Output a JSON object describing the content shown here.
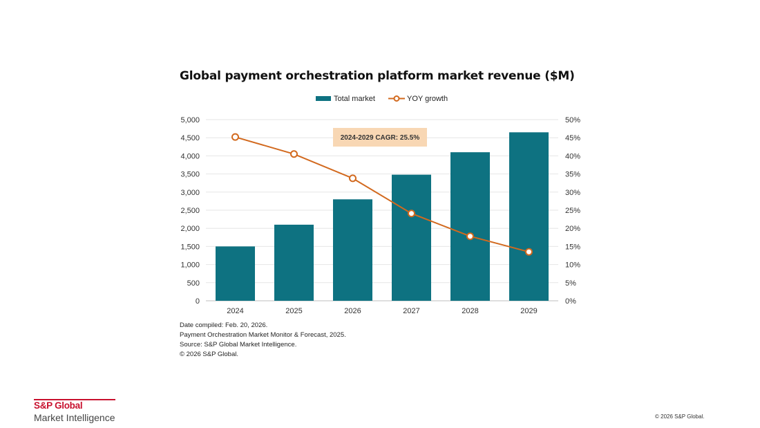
{
  "page": {
    "notes": [
      "Date compiled: Feb. 20, 2026.",
      "Payment Orchestration Market Monitor & Forecast, 2025.",
      "Source: S&P Global Market Intelligence.",
      "© 2026 S&P Global."
    ],
    "brand": {
      "name": "S&P Global",
      "division": "Market Intelligence"
    },
    "footer_copyright": "© 2026 S&P Global."
  },
  "chart_data": {
    "type": "bar",
    "title": "Global payment orchestration platform market revenue ($M)",
    "categories": [
      "2024",
      "2025",
      "2026",
      "2027",
      "2028",
      "2029"
    ],
    "series": [
      {
        "name": "Total market",
        "type": "bar",
        "axis": "left",
        "color": "#0e7281",
        "values": [
          1500,
          2100,
          2800,
          3480,
          4100,
          4650
        ]
      },
      {
        "name": "YOY growth",
        "type": "line",
        "axis": "right",
        "color": "#d2691e",
        "values": [
          45.2,
          40.5,
          33.8,
          24.1,
          17.8,
          13.5
        ]
      }
    ],
    "y_left": {
      "min": 0,
      "max": 5000,
      "step": 500,
      "tick_labels": [
        "0",
        "500",
        "1,000",
        "1,500",
        "2,000",
        "2,500",
        "3,000",
        "3,500",
        "4,000",
        "4,500",
        "5,000"
      ]
    },
    "y_right": {
      "min": 0,
      "max": 50,
      "step": 5,
      "tick_labels": [
        "0%",
        "5%",
        "10%",
        "15%",
        "20%",
        "25%",
        "30%",
        "35%",
        "40%",
        "45%",
        "50%"
      ]
    },
    "annotation": {
      "text": "2024-2029 CAGR: 25.5%",
      "fill": "#f8d7b4"
    },
    "legend": "top-center",
    "grid": true
  }
}
